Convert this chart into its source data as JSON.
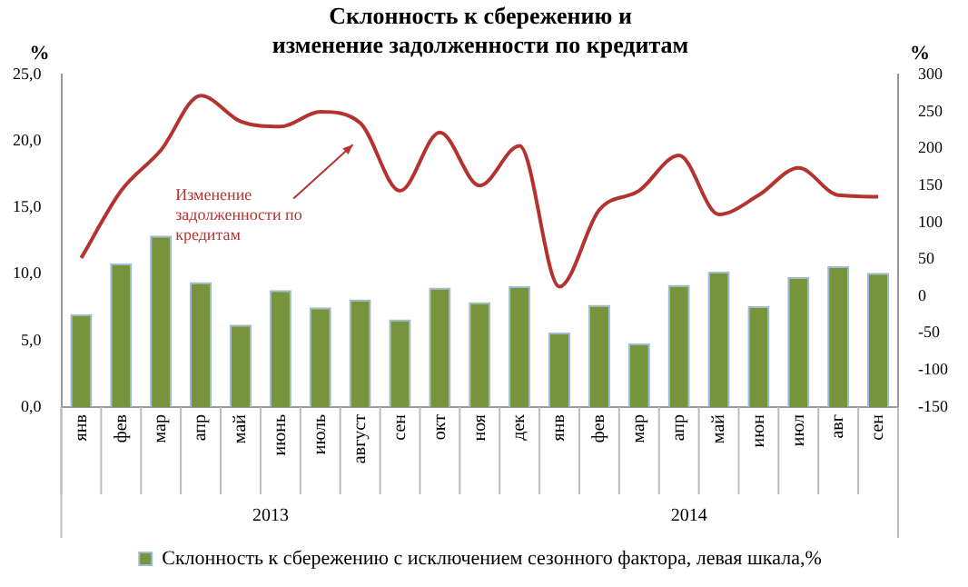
{
  "chart_data": {
    "type": "bar",
    "title": "Склонность к сбережению и\nизменение задолженности по кредитам",
    "ylabel": "%",
    "y2label": "%",
    "categories": [
      "янв",
      "фев",
      "мар",
      "апр",
      "май",
      "июнь",
      "июль",
      "август",
      "сен",
      "окт",
      "ноя",
      "дек",
      "янв",
      "фев",
      "мар",
      "апр",
      "май",
      "июн",
      "июл",
      "авг",
      "сен"
    ],
    "series": [
      {
        "name": "Склонность к сбережению с исключением сезонного фактора, левая шкала,%",
        "color": "#77933c",
        "values": [
          7.0,
          10.8,
          12.9,
          9.4,
          6.2,
          8.8,
          7.5,
          8.1,
          6.6,
          9.0,
          7.9,
          9.1,
          5.6,
          7.7,
          4.8,
          9.2,
          10.2,
          7.6,
          9.8,
          10.6,
          10.1
        ]
      },
      {
        "name": "Изменение задолженности по кредитам",
        "type": "line",
        "axis": "y2",
        "color": "#b5332f",
        "values": [
          52,
          143,
          198,
          272,
          237,
          230,
          250,
          235,
          143,
          222,
          150,
          204,
          13,
          117,
          143,
          191,
          111,
          137,
          174,
          137,
          135
        ]
      }
    ],
    "ylim": [
      0,
      25
    ],
    "yticks": [
      {
        "value": 0,
        "label": "0,0"
      },
      {
        "value": 5,
        "label": "5,0"
      },
      {
        "value": 10,
        "label": "10,0"
      },
      {
        "value": 15,
        "label": "15,0"
      },
      {
        "value": 20,
        "label": "20,0"
      },
      {
        "value": 25,
        "label": "25,0"
      }
    ],
    "y2lim": [
      -150,
      300
    ],
    "y2ticks": [
      -150,
      -100,
      -50,
      0,
      50,
      100,
      150,
      200,
      250,
      300
    ],
    "annotations": [
      "2013",
      "2014"
    ],
    "grid": false,
    "legend": "bottom",
    "marker": "none"
  }
}
